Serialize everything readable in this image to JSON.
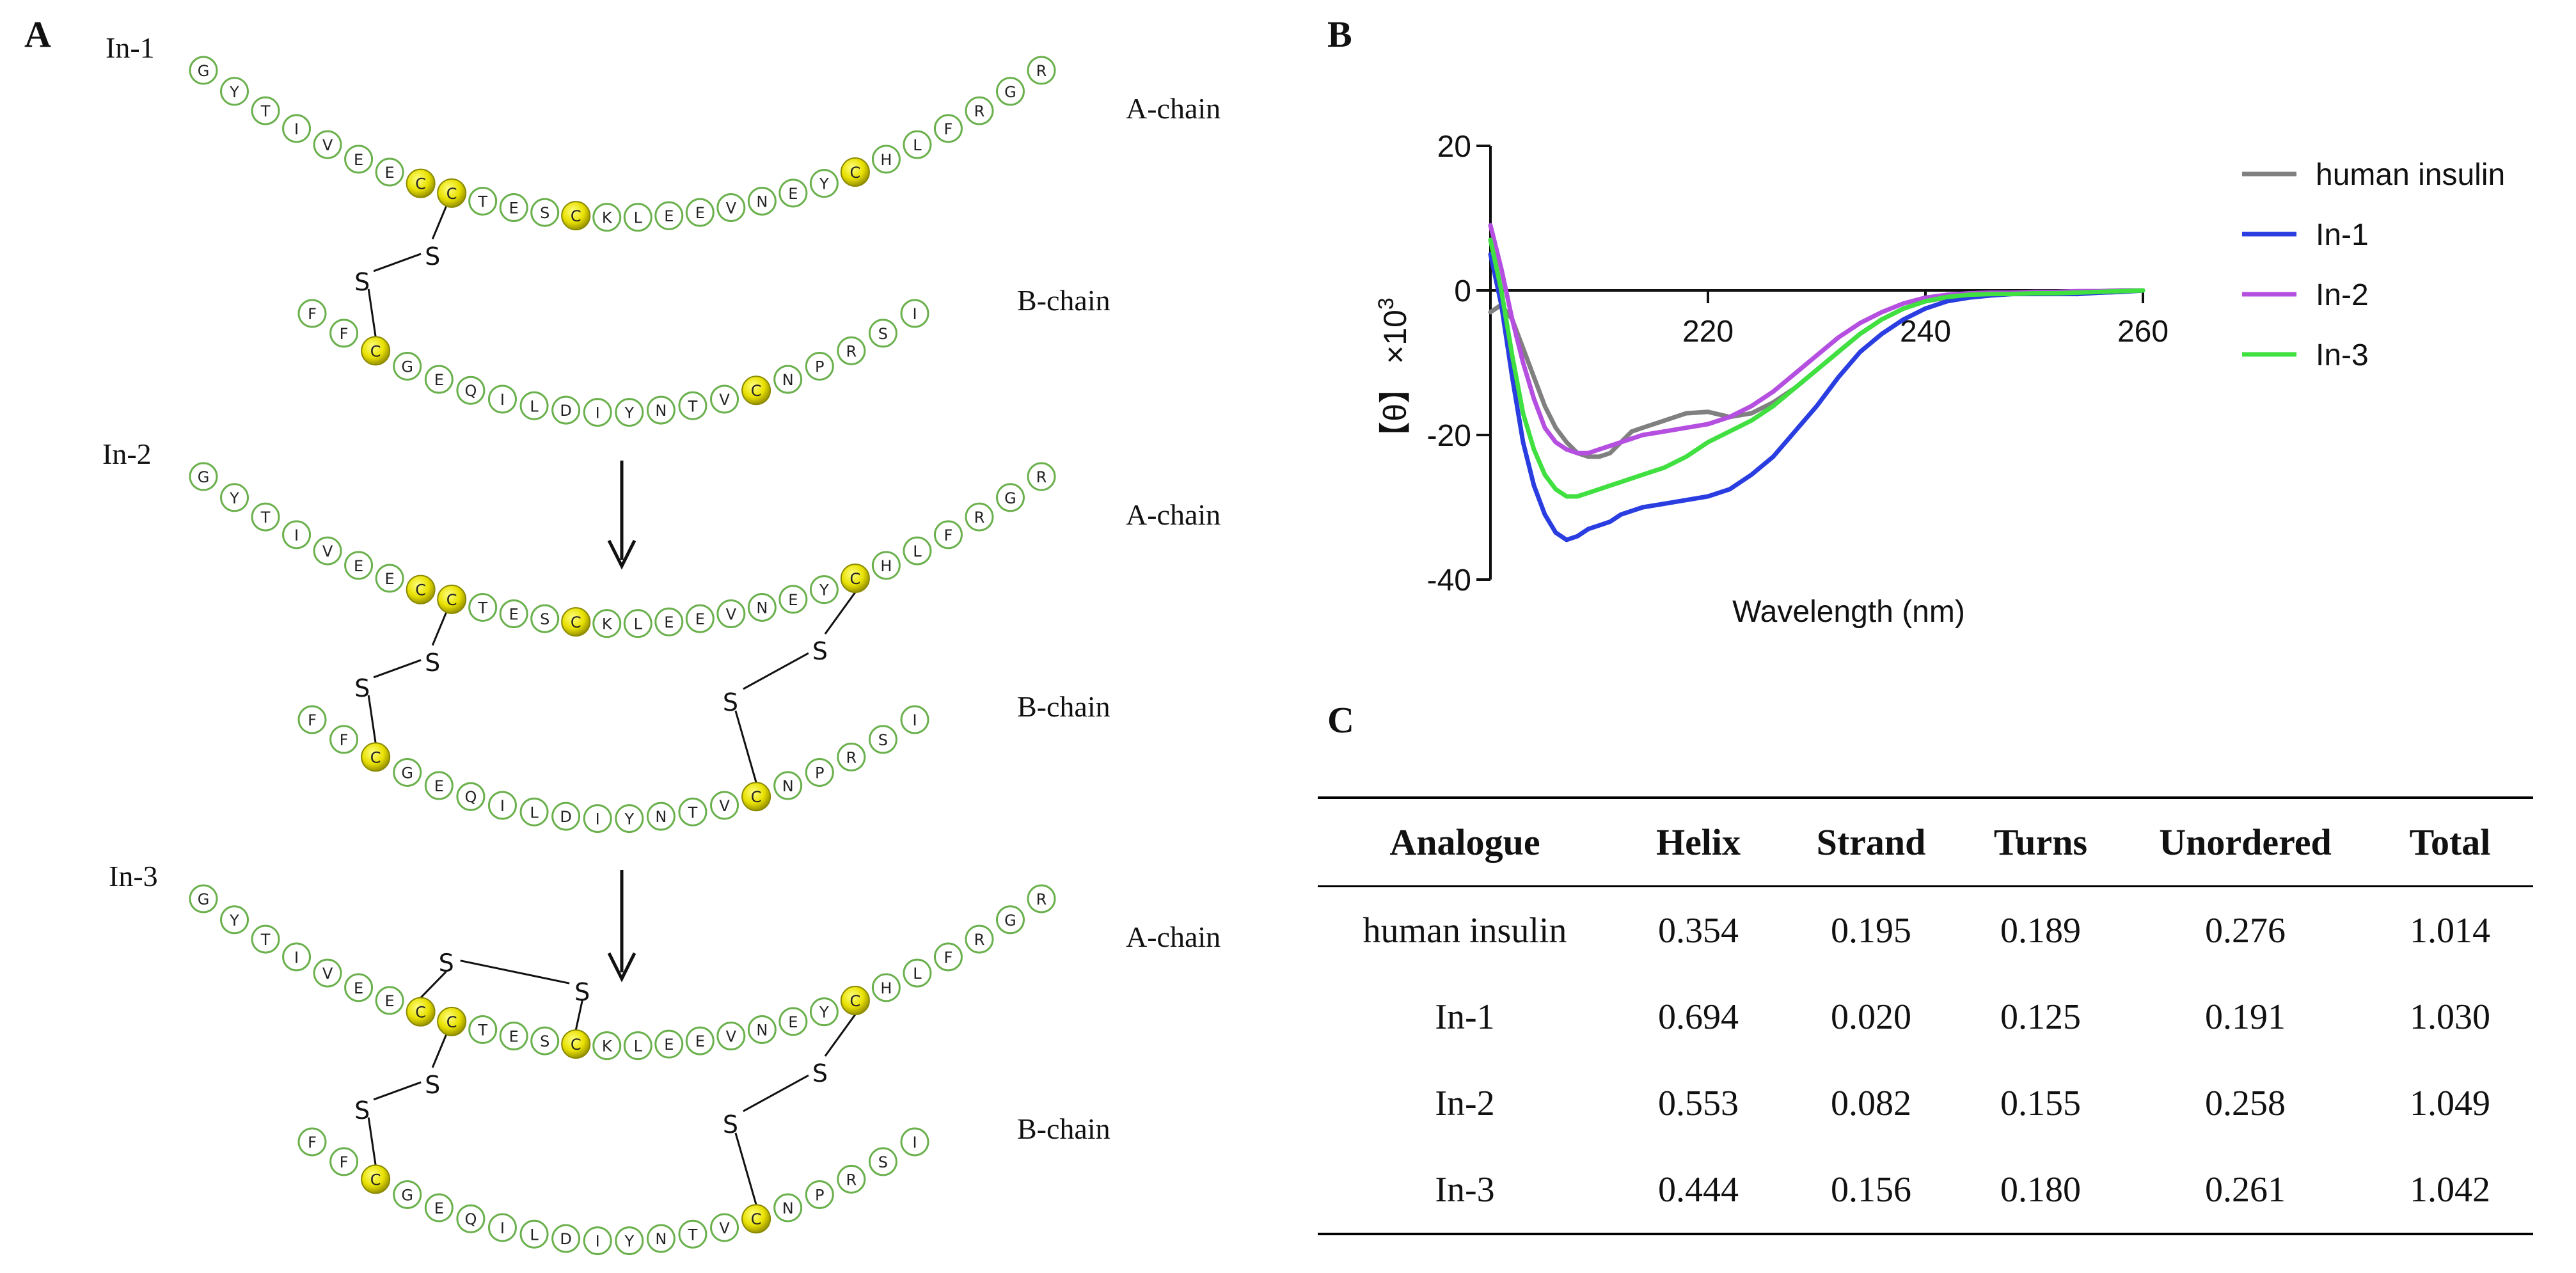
{
  "panels": {
    "a": "A",
    "b": "B",
    "c": "C"
  },
  "structures": [
    {
      "name": "In-1",
      "a_chain": "A-chain",
      "b_chain": "B-chain"
    },
    {
      "name": "In-2",
      "a_chain": "A-chain",
      "b_chain": "B-chain"
    },
    {
      "name": "In-3",
      "a_chain": "A-chain",
      "b_chain": "B-chain"
    }
  ],
  "a_chain_sequence": [
    "G",
    "Y",
    "T",
    "I",
    "V",
    "E",
    "E",
    "C",
    "C",
    "T",
    "E",
    "S",
    "C",
    "K",
    "L",
    "E",
    "E",
    "V",
    "N",
    "E",
    "Y",
    "C",
    "H",
    "L",
    "F",
    "R",
    "G",
    "R"
  ],
  "b_chain_sequence": [
    "F",
    "F",
    "C",
    "G",
    "E",
    "Q",
    "I",
    "L",
    "D",
    "I",
    "Y",
    "N",
    "T",
    "V",
    "C",
    "N",
    "P",
    "R",
    "S",
    "I"
  ],
  "sulfur_label": "S",
  "chart_data": {
    "type": "line",
    "xlabel": "Wavelength (nm)",
    "ylabel": "[θ] ×10³",
    "ylabel_bracket_left": "【",
    "ylabel_theta": "θ",
    "ylabel_bracket_right": "】",
    "ylabel_times": "×10",
    "ylabel_exp": "3",
    "xlim": [
      200,
      260
    ],
    "ylim": [
      -40,
      20
    ],
    "xticks": [
      220,
      240,
      260
    ],
    "yticks": [
      20,
      0,
      -20,
      -40
    ],
    "series": [
      {
        "name": "human insulin",
        "color": "#808080",
        "x": [
          200,
          201,
          202,
          203,
          204,
          205,
          206,
          207,
          208,
          209,
          210,
          211,
          212,
          213,
          214,
          216,
          218,
          220,
          222,
          224,
          226,
          228,
          230,
          232,
          234,
          236,
          238,
          240,
          242,
          244,
          246,
          248,
          250,
          252,
          254,
          256,
          258,
          260
        ],
        "y": [
          -3,
          -2,
          -4,
          -8,
          -12,
          -16,
          -19,
          -21,
          -22.5,
          -23,
          -23,
          -22.5,
          -21,
          -19.5,
          -19,
          -18,
          -17,
          -16.8,
          -17.5,
          -17,
          -15.5,
          -13.5,
          -11,
          -8.5,
          -6,
          -4,
          -2.5,
          -1.5,
          -1,
          -0.6,
          -0.4,
          -0.3,
          -0.3,
          -0.4,
          -0.5,
          -0.3,
          -0.2,
          0
        ]
      },
      {
        "name": "In-1",
        "color": "#2a3de0",
        "x": [
          200,
          201,
          202,
          203,
          204,
          205,
          206,
          207,
          208,
          209,
          210,
          211,
          212,
          214,
          216,
          218,
          220,
          222,
          224,
          226,
          228,
          230,
          232,
          234,
          236,
          238,
          240,
          242,
          244,
          246,
          248,
          250,
          252,
          254,
          256,
          258,
          260
        ],
        "y": [
          5,
          -2,
          -12,
          -21,
          -27,
          -31,
          -33.5,
          -34.5,
          -34,
          -33,
          -32.5,
          -32,
          -31,
          -30,
          -29.5,
          -29,
          -28.5,
          -27.5,
          -25.5,
          -23,
          -19.5,
          -16,
          -12,
          -8.5,
          -6,
          -4,
          -2.5,
          -1.5,
          -1,
          -0.7,
          -0.5,
          -0.5,
          -0.5,
          -0.5,
          -0.3,
          -0.2,
          0
        ]
      },
      {
        "name": "In-2",
        "color": "#b54fe0",
        "x": [
          200,
          201,
          202,
          203,
          204,
          205,
          206,
          207,
          208,
          209,
          210,
          211,
          212,
          214,
          216,
          218,
          220,
          222,
          224,
          226,
          228,
          230,
          232,
          234,
          236,
          238,
          240,
          242,
          244,
          246,
          248,
          250,
          252,
          254,
          256,
          258,
          260
        ],
        "y": [
          9,
          3,
          -4,
          -10,
          -15,
          -19,
          -21,
          -22,
          -22.5,
          -22.5,
          -22,
          -21.5,
          -21,
          -20,
          -19.5,
          -19,
          -18.5,
          -17.5,
          -16,
          -14,
          -11.5,
          -9,
          -6.5,
          -4.5,
          -3,
          -1.8,
          -1,
          -0.6,
          -0.4,
          -0.3,
          -0.3,
          -0.2,
          -0.2,
          -0.1,
          -0.1,
          0,
          0
        ]
      },
      {
        "name": "In-3",
        "color": "#3fe03f",
        "x": [
          200,
          201,
          202,
          203,
          204,
          205,
          206,
          207,
          208,
          209,
          210,
          211,
          212,
          214,
          216,
          218,
          220,
          222,
          224,
          226,
          228,
          230,
          232,
          234,
          236,
          238,
          240,
          242,
          244,
          246,
          248,
          250,
          252,
          254,
          256,
          258,
          260
        ],
        "y": [
          7,
          0,
          -9,
          -17,
          -22,
          -25.5,
          -27.5,
          -28.5,
          -28.5,
          -28,
          -27.5,
          -27,
          -26.5,
          -25.5,
          -24.5,
          -23,
          -21,
          -19.5,
          -18,
          -16,
          -13.5,
          -11,
          -8.5,
          -6,
          -4,
          -2.5,
          -1.5,
          -0.9,
          -0.6,
          -0.5,
          -0.5,
          -0.4,
          -0.4,
          -0.3,
          -0.2,
          -0.1,
          0
        ]
      }
    ]
  },
  "table": {
    "headers": [
      "Analogue",
      "Helix",
      "Strand",
      "Turns",
      "Unordered",
      "Total"
    ],
    "rows": [
      [
        "human insulin",
        "0.354",
        "0.195",
        "0.189",
        "0.276",
        "1.014"
      ],
      [
        "In-1",
        "0.694",
        "0.020",
        "0.125",
        "0.191",
        "1.030"
      ],
      [
        "In-2",
        "0.553",
        "0.082",
        "0.155",
        "0.258",
        "1.049"
      ],
      [
        "In-3",
        "0.444",
        "0.156",
        "0.180",
        "0.261",
        "1.042"
      ]
    ]
  }
}
